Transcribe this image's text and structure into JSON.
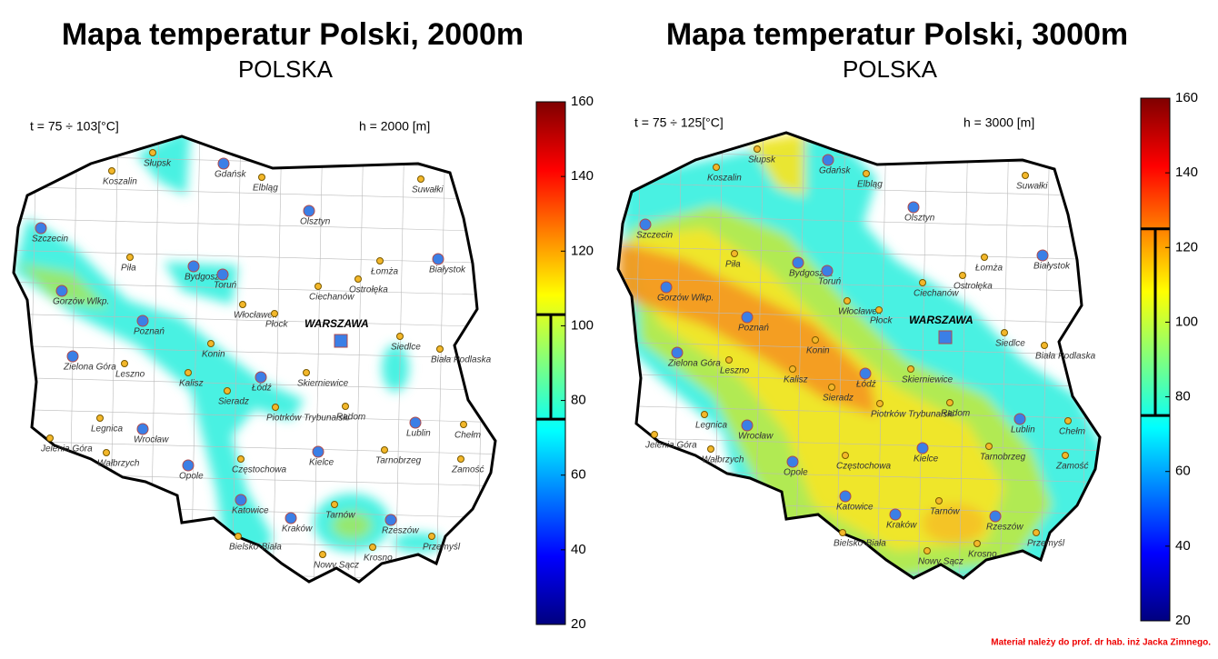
{
  "maps": [
    {
      "title": "Mapa temperatur Polski, 2000m",
      "subtitle": "POLSKA",
      "temperature_label": "t = 75 ÷ 103[°C]",
      "depth_label": "h = 2000 [m]",
      "colorbar": {
        "lim": [
          20,
          160
        ],
        "ticks": [
          20,
          40,
          60,
          80,
          100,
          120,
          140,
          160
        ],
        "range": [
          75,
          103
        ]
      }
    },
    {
      "title": "Mapa temperatur Polski, 3000m",
      "subtitle": "POLSKA",
      "temperature_label": "t = 75 ÷ 125[°C]",
      "depth_label": "h = 3000 [m]",
      "colorbar": {
        "lim": [
          20,
          160
        ],
        "ticks": [
          20,
          40,
          60,
          80,
          100,
          120,
          140,
          160
        ],
        "range": [
          75,
          125
        ]
      }
    }
  ],
  "capital": "WARSZAWA",
  "cities": [
    "Słupsk",
    "Gdańsk",
    "Koszalin",
    "Elbląg",
    "Olsztyn",
    "Suwałki",
    "Szczecin",
    "Piła",
    "Bydgoszcz",
    "Toruń",
    "Łomża",
    "Ciechanów",
    "Ostrołęka",
    "Białystok",
    "Gorzów Wlkp.",
    "Włocławek",
    "Płock",
    "Poznań",
    "Siedlce",
    "Biała Podlaska",
    "Zielona Góra",
    "Leszno",
    "Konin",
    "Kalisz",
    "Łódź",
    "Skierniewice",
    "Sieradz",
    "Radom",
    "Lublin",
    "Legnica",
    "Wrocław",
    "Piotrków Trybunalski",
    "Chełm",
    "Jelenia Góra",
    "Kielce",
    "Opole",
    "Wałbrzych",
    "Częstochowa",
    "Tarnobrzeg",
    "Zamość",
    "Katowice",
    "Kraków",
    "Rzeszów",
    "Tarnów",
    "Przemyśl",
    "Bielsko-Biała",
    "Krosno",
    "Nowy Sącz"
  ],
  "footer": "Materiał należy do prof. dr hab. inż Jacka Zimnego."
}
